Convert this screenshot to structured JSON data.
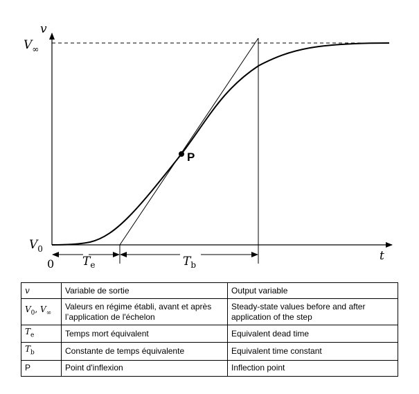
{
  "diagram": {
    "labels": {
      "y_axis": "v",
      "x_axis": "t",
      "v_inf_main": "V",
      "v_inf_sub": "∞",
      "v0_main": "V",
      "v0_sub": "0",
      "origin": "0",
      "te_main": "T",
      "te_sub": "e",
      "tb_main": "T",
      "tb_sub": "b",
      "inflection": "P"
    }
  },
  "legend": {
    "rows": [
      {
        "symbol": "v",
        "french": "Variable de sortie",
        "english": "Output variable"
      },
      {
        "symbol_parts": [
          "V",
          "0",
          ", ",
          "V",
          "∞"
        ],
        "french": "Valeurs en régime établi, avant et après l’application de l'échelon",
        "english": "Steady-state values before and after application of the step"
      },
      {
        "symbol_parts": [
          "T",
          "e"
        ],
        "french": "Temps mort équivalent",
        "english": "Equivalent dead time"
      },
      {
        "symbol_parts": [
          "T",
          "b"
        ],
        "french": "Constante de temps équivalente",
        "english": "Equivalent time constant"
      },
      {
        "symbol": "P",
        "french": "Point d'inflexion",
        "english": "Inflection point"
      }
    ]
  }
}
